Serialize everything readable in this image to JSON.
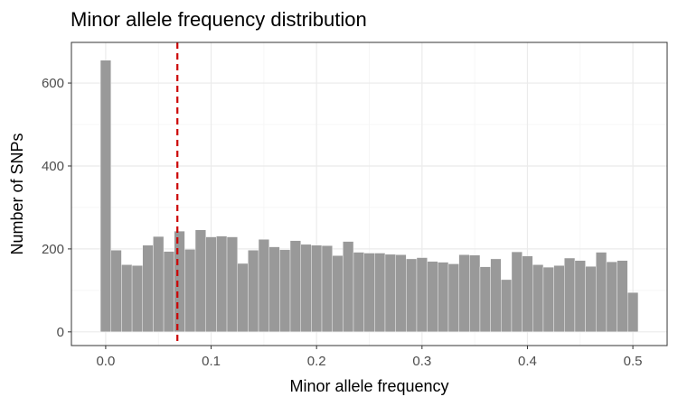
{
  "chart_data": {
    "type": "bar",
    "subtype": "histogram",
    "title": "Minor allele frequency distribution",
    "xlabel": "Minor allele frequency",
    "ylabel": "Number of SNPs",
    "xlim": [
      -0.0325,
      0.5325
    ],
    "ylim": [
      -33,
      698
    ],
    "x_ticks": [
      0.0,
      0.1,
      0.2,
      0.3,
      0.4,
      0.5
    ],
    "x_tick_labels": [
      "0.0",
      "0.1",
      "0.2",
      "0.3",
      "0.4",
      "0.5"
    ],
    "y_ticks": [
      0,
      200,
      400,
      600
    ],
    "y_tick_labels": [
      "0",
      "200",
      "400",
      "600"
    ],
    "grid": true,
    "bin_width": 0.01,
    "bin_centers": [
      0.0,
      0.01,
      0.02,
      0.03,
      0.04,
      0.05,
      0.06,
      0.07,
      0.08,
      0.09,
      0.1,
      0.11,
      0.12,
      0.13,
      0.14,
      0.15,
      0.16,
      0.17,
      0.18,
      0.19,
      0.2,
      0.21,
      0.22,
      0.23,
      0.24,
      0.25,
      0.26,
      0.27,
      0.28,
      0.29,
      0.3,
      0.31,
      0.32,
      0.33,
      0.34,
      0.35,
      0.36,
      0.37,
      0.38,
      0.39,
      0.4,
      0.41,
      0.42,
      0.43,
      0.44,
      0.45,
      0.46,
      0.47,
      0.48,
      0.49,
      0.5
    ],
    "values": [
      655,
      197,
      162,
      160,
      209,
      230,
      194,
      243,
      199,
      246,
      229,
      231,
      229,
      165,
      197,
      223,
      205,
      198,
      220,
      211,
      209,
      208,
      184,
      218,
      192,
      190,
      190,
      187,
      186,
      176,
      179,
      170,
      168,
      164,
      186,
      185,
      157,
      176,
      126,
      193,
      183,
      162,
      156,
      160,
      178,
      172,
      158,
      192,
      169,
      172,
      95
    ],
    "bar_color": "#999999",
    "reference_line": {
      "x": 0.068,
      "color": "#cc0000",
      "style": "dashed"
    }
  }
}
